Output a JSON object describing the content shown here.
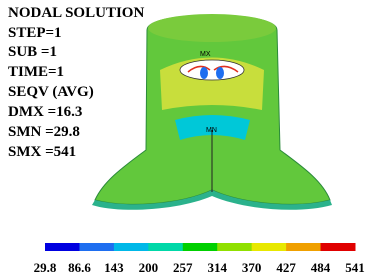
{
  "info": {
    "title": "NODAL SOLUTION",
    "lines": [
      "STEP=1",
      "SUB =1",
      "TIME=1",
      "SEQV   (AVG)",
      "DMX =16.3",
      "SMN =29.8",
      "SMX =541"
    ]
  },
  "markers": {
    "max": "MX",
    "min": "MN"
  },
  "colorbar": {
    "labels": [
      "29.8",
      "86.6",
      "143",
      "200",
      "257",
      "314",
      "370",
      "427",
      "484",
      "541"
    ],
    "colors": [
      "#0000e0",
      "#1e6ef0",
      "#00b8e8",
      "#00d8a8",
      "#00d000",
      "#90e000",
      "#e8e800",
      "#f0a000",
      "#e00000"
    ]
  }
}
